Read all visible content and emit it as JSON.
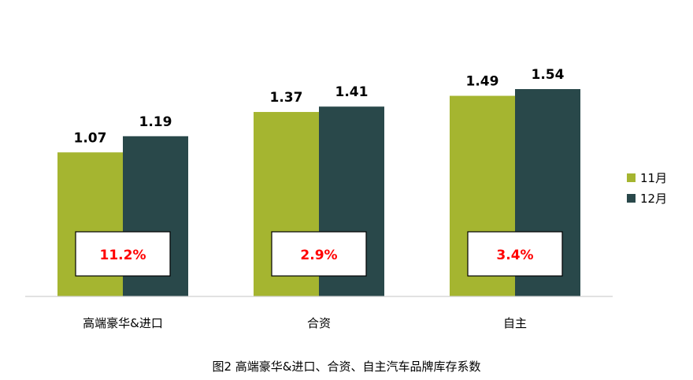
{
  "chart_data": {
    "type": "bar",
    "categories": [
      "高端豪华&进口",
      "合资",
      "自主"
    ],
    "series": [
      {
        "name": "11月",
        "values": [
          1.07,
          1.37,
          1.49
        ],
        "color": "#a5b530"
      },
      {
        "name": "12月",
        "values": [
          1.19,
          1.41,
          1.54
        ],
        "color": "#29484a"
      }
    ],
    "ylim": [
      0,
      1.7
    ],
    "grid": false,
    "legend": "right",
    "annotations": [
      "11.2%",
      "2.9%",
      "3.4%"
    ],
    "annotation_color": "#ff0000",
    "title": "图2 高端豪华&进口、合资、自主汽车品牌库存系数"
  }
}
